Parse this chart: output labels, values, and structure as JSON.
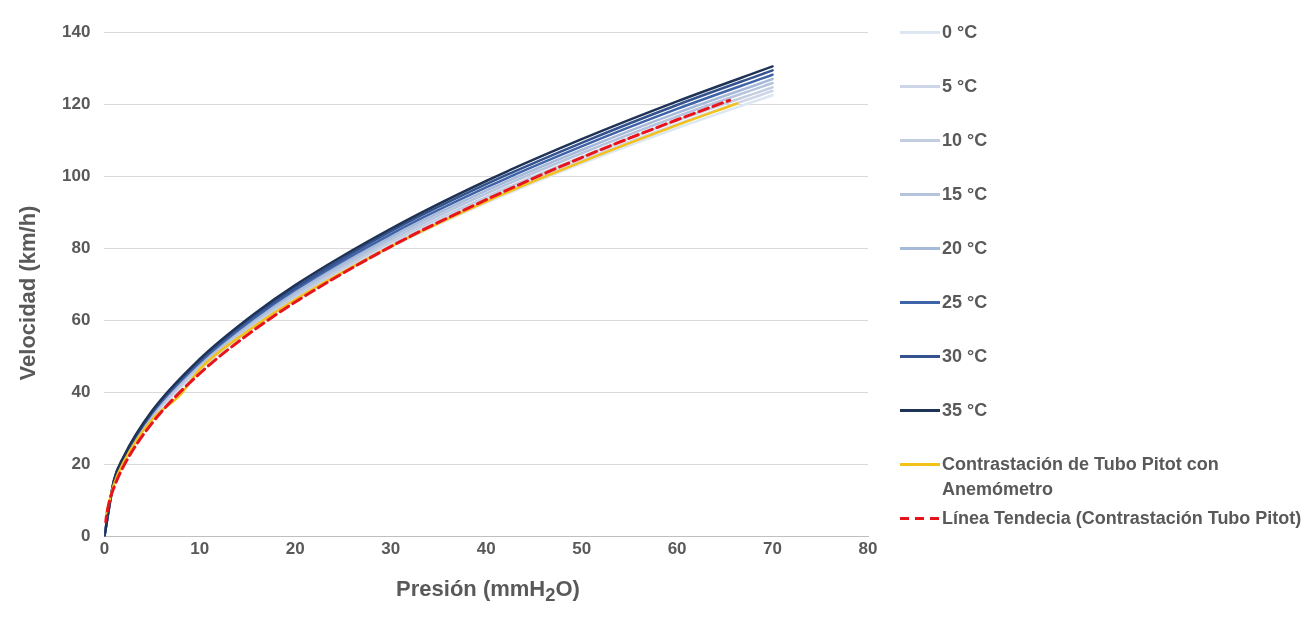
{
  "chart_data": {
    "type": "line",
    "xlabel": "Presión (mmH$_{2}$O)",
    "ylabel": "Velocidad (km/h)",
    "xlim": [
      0,
      80
    ],
    "xticks": [
      0,
      10,
      20,
      30,
      40,
      50,
      60,
      70,
      80
    ],
    "ylim": [
      0,
      140
    ],
    "yticks": [
      0,
      20,
      40,
      60,
      80,
      100,
      120,
      140
    ],
    "grid": "y",
    "legend": "right",
    "marker": "none",
    "x": [
      0,
      1,
      2,
      5,
      10,
      15,
      20,
      30,
      40,
      50,
      60,
      70
    ],
    "series": [
      {
        "name": "0 °C",
        "color": "#dde7f2",
        "values": [
          0,
          14.6,
          20.7,
          32.7,
          46.3,
          56.7,
          65.5,
          80.2,
          92.6,
          103.5,
          113.4,
          122.5
        ]
      },
      {
        "name": "5 °C",
        "color": "#cfd5e8",
        "values": [
          0,
          14.8,
          20.9,
          33.0,
          46.7,
          57.2,
          66.1,
          80.9,
          93.5,
          104.5,
          114.5,
          123.7
        ]
      },
      {
        "name": "10 °C",
        "color": "#c3cde0",
        "values": [
          0,
          14.9,
          21.1,
          33.3,
          47.1,
          57.7,
          66.7,
          81.7,
          94.3,
          105.4,
          115.5,
          124.7
        ]
      },
      {
        "name": "15 °C",
        "color": "#b4c4df",
        "values": [
          0,
          15.1,
          21.3,
          33.7,
          47.6,
          58.3,
          67.3,
          82.4,
          95.2,
          106.4,
          116.6,
          125.9
        ]
      },
      {
        "name": "20 °C",
        "color": "#a7b9d9",
        "values": [
          0,
          15.2,
          21.5,
          33.9,
          48.0,
          58.8,
          67.9,
          83.1,
          96.0,
          107.3,
          117.6,
          127.0
        ]
      },
      {
        "name": "25 °C",
        "color": "#3f63a8",
        "values": [
          0,
          15.3,
          21.7,
          34.3,
          48.4,
          59.3,
          68.5,
          83.9,
          96.9,
          108.3,
          118.7,
          128.2
        ]
      },
      {
        "name": "30 °C",
        "color": "#34528e",
        "values": [
          0,
          15.5,
          21.9,
          34.6,
          48.9,
          59.9,
          69.1,
          84.7,
          97.8,
          109.3,
          119.8,
          129.4
        ]
      },
      {
        "name": "35 °C",
        "color": "#1f3356",
        "values": [
          0,
          15.6,
          22.1,
          34.9,
          49.3,
          60.4,
          69.8,
          85.4,
          98.7,
          110.3,
          120.8,
          130.5
        ]
      },
      {
        "name": "Contrastación de Tubo Pitot con Anemómetro",
        "color": "#f2c21b",
        "x": [
          0.2,
          1,
          2,
          5,
          8,
          10,
          15,
          20,
          30,
          40,
          50,
          60,
          66.3
        ],
        "values": [
          6.5,
          14.5,
          20.6,
          32.5,
          39.5,
          46.5,
          57,
          65.8,
          80.5,
          93,
          104,
          114.2,
          120.2
        ]
      },
      {
        "name": "Línea Tendecia (Contrastación Tubo Pitot)",
        "color": "#e8141c",
        "line_style": "dashed",
        "x": [
          0.1,
          0.5,
          1,
          2,
          5,
          10,
          15,
          20,
          30,
          40,
          50,
          60,
          65.5
        ],
        "values": [
          4.1,
          9.5,
          13.6,
          19.5,
          31.5,
          45.3,
          56.0,
          65.1,
          80.5,
          93.5,
          105.2,
          115.7,
          121.1
        ]
      }
    ]
  }
}
